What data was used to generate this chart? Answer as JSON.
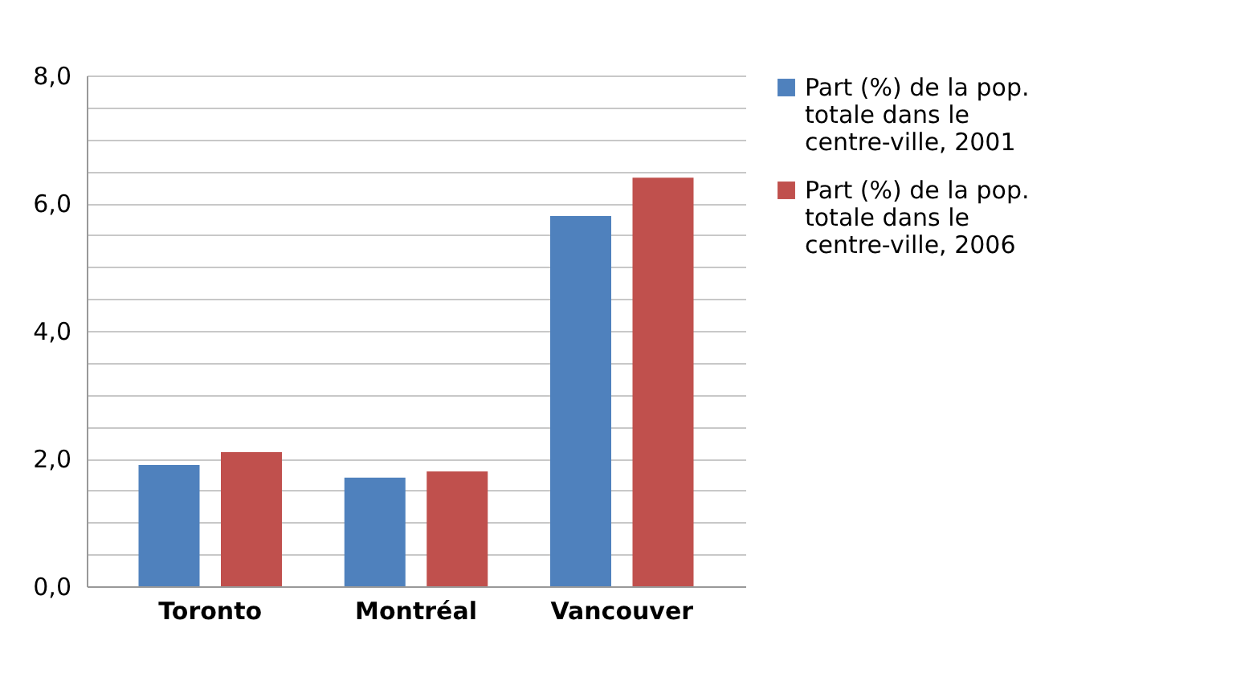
{
  "chart_data": {
    "type": "bar",
    "categories": [
      "Toronto",
      "Montréal",
      "Vancouver"
    ],
    "series": [
      {
        "name": "Part (%) de la pop. totale dans le centre-ville, 2001",
        "color": "#4f81bd",
        "values": [
          1.9,
          1.7,
          5.8
        ]
      },
      {
        "name": "Part (%) de la pop. totale dans le centre-ville, 2006",
        "color": "#c0504d",
        "values": [
          2.1,
          1.8,
          6.4
        ]
      }
    ],
    "ylim": [
      0,
      8
    ],
    "yticks": [
      {
        "value": 0,
        "label": "0,0"
      },
      {
        "value": 0.5,
        "label": null
      },
      {
        "value": 1,
        "label": null
      },
      {
        "value": 1.5,
        "label": null
      },
      {
        "value": 2,
        "label": "2,0"
      },
      {
        "value": 2.5,
        "label": null
      },
      {
        "value": 3,
        "label": null
      },
      {
        "value": 3.5,
        "label": null
      },
      {
        "value": 4,
        "label": "4,0"
      },
      {
        "value": 4.5,
        "label": null
      },
      {
        "value": 5,
        "label": null
      },
      {
        "value": 5.5,
        "label": null
      },
      {
        "value": 6,
        "label": "6,0"
      },
      {
        "value": 6.5,
        "label": null
      },
      {
        "value": 7,
        "label": null
      },
      {
        "value": 7.5,
        "label": null
      },
      {
        "value": 8,
        "label": "8,0"
      }
    ],
    "grid": true,
    "legend": "right"
  }
}
